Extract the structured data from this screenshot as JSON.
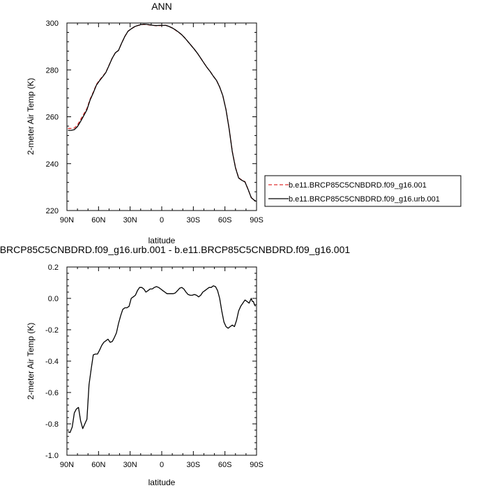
{
  "chart_data": [
    {
      "type": "line",
      "title": "ANN",
      "xlabel": "latitude",
      "ylabel": "2-meter Air Temp (K)",
      "xlim": [
        90,
        -90
      ],
      "ylim": [
        220,
        300
      ],
      "x_tick_values": [
        90,
        60,
        30,
        0,
        -30,
        -60,
        -90
      ],
      "x_tick_labels": [
        "90N",
        "60N",
        "30N",
        "0",
        "30S",
        "60S",
        "90S"
      ],
      "y_tick_values": [
        220,
        240,
        260,
        280,
        300
      ],
      "y_tick_labels": [
        "220",
        "240",
        "260",
        "280",
        "300"
      ],
      "grid": false,
      "legend_position": "right",
      "series": [
        {
          "name": "b.e11.BRCP85C5CNBDRD.f09_g16.001",
          "color": "#e03030",
          "dash": "dashed",
          "x": [
            89,
            86,
            83,
            80,
            77,
            74,
            71,
            68,
            65,
            62,
            59,
            56,
            53,
            50,
            47,
            44,
            41,
            38,
            35,
            32,
            29,
            26,
            23,
            20,
            17,
            14,
            11,
            8,
            5,
            2,
            -1,
            -4,
            -7,
            -10,
            -13,
            -16,
            -19,
            -22,
            -25,
            -28,
            -31,
            -34,
            -37,
            -40,
            -43,
            -46,
            -49,
            -52,
            -55,
            -58,
            -61,
            -64,
            -67,
            -70,
            -73,
            -76,
            -79,
            -82,
            -85,
            -88,
            -89
          ],
          "y": [
            255,
            255,
            255.2,
            256.5,
            258.8,
            261.2,
            263.5,
            267.5,
            270.5,
            273.8,
            275.7,
            277.3,
            279,
            282,
            285,
            287.3,
            288.3,
            291.5,
            294.3,
            296.5,
            297.5,
            298.3,
            298.9,
            299.2,
            299.4,
            299.3,
            299.1,
            299,
            298.8,
            298.9,
            299,
            299,
            298.5,
            297.9,
            297,
            296,
            295,
            293.6,
            292,
            290.4,
            288.8,
            287,
            285,
            283,
            281,
            279.3,
            277.3,
            275.5,
            272.7,
            269,
            263,
            255,
            245.3,
            238.4,
            234,
            233,
            232.3,
            229,
            225.5,
            224.3,
            224.3
          ]
        },
        {
          "name": "b.e11.BRCP85C5CNBDRD.f09_g16.urb.001",
          "color": "#000000",
          "dash": "solid",
          "x": [
            89,
            86,
            83,
            80,
            77,
            74,
            71,
            68,
            65,
            62,
            59,
            56,
            53,
            50,
            47,
            44,
            41,
            38,
            35,
            32,
            29,
            26,
            23,
            20,
            17,
            14,
            11,
            8,
            5,
            2,
            -1,
            -4,
            -7,
            -10,
            -13,
            -16,
            -19,
            -22,
            -25,
            -28,
            -31,
            -34,
            -37,
            -40,
            -43,
            -46,
            -49,
            -52,
            -55,
            -58,
            -61,
            -64,
            -67,
            -70,
            -73,
            -76,
            -79,
            -82,
            -85,
            -88,
            -89
          ],
          "y": [
            254.2,
            254.2,
            254.5,
            255.8,
            258,
            260.5,
            263,
            267.1,
            270.2,
            273.5,
            275.4,
            277.1,
            278.9,
            281.9,
            285,
            287.3,
            288.3,
            291.5,
            294.3,
            296.5,
            297.5,
            298.4,
            298.9,
            299.3,
            299.5,
            299.4,
            299.2,
            299,
            298.9,
            299,
            299,
            299,
            298.5,
            297.9,
            297.1,
            296.1,
            295,
            293.6,
            292,
            290.4,
            288.8,
            287,
            285,
            283,
            281,
            279.3,
            277.3,
            275.5,
            272.7,
            269,
            263,
            254.8,
            245.1,
            238.2,
            233.9,
            232.9,
            232.2,
            229,
            225.5,
            224.3,
            224.3
          ]
        }
      ]
    },
    {
      "type": "line",
      "title": "b.e11.BRCP85C5CNBDRD.f09_g16.urb.001 - b.e11.BRCP85C5CNBDRD.f09_g16.001",
      "xlabel": "latitude",
      "ylabel": "2-meter Air Temp (K)",
      "xlim": [
        90,
        -90
      ],
      "ylim": [
        -1.0,
        0.2
      ],
      "x_tick_values": [
        90,
        60,
        30,
        0,
        -30,
        -60,
        -90
      ],
      "x_tick_labels": [
        "90N",
        "60N",
        "30N",
        "0",
        "30S",
        "60S",
        "90S"
      ],
      "y_tick_values": [
        -1.0,
        -0.8,
        -0.6,
        -0.4,
        -0.2,
        0.0,
        0.2
      ],
      "y_tick_labels": [
        "-1.0",
        "-0.8",
        "-0.6",
        "-0.4",
        "-0.2",
        "0.0",
        "0.2"
      ],
      "grid": false,
      "series": [
        {
          "color": "#000000",
          "dash": "solid",
          "x": [
            89,
            87,
            85,
            83,
            81,
            79,
            77,
            75,
            73,
            71,
            69,
            67,
            65,
            63,
            61,
            59,
            57,
            55,
            53,
            51,
            49,
            47,
            45,
            43,
            41,
            39,
            37,
            35,
            33,
            31,
            29,
            27,
            25,
            23,
            21,
            19,
            17,
            15,
            13,
            11,
            9,
            7,
            5,
            3,
            1,
            -1,
            -3,
            -5,
            -7,
            -9,
            -11,
            -13,
            -15,
            -17,
            -19,
            -21,
            -23,
            -25,
            -27,
            -29,
            -31,
            -33,
            -35,
            -37,
            -39,
            -41,
            -43,
            -45,
            -47,
            -49,
            -51,
            -53,
            -55,
            -57,
            -59,
            -61,
            -63,
            -65,
            -67,
            -69,
            -71,
            -73,
            -75,
            -77,
            -79,
            -81,
            -83,
            -85,
            -86,
            -87,
            -88,
            -89
          ],
          "y": [
            -0.85,
            -0.855,
            -0.82,
            -0.73,
            -0.705,
            -0.695,
            -0.78,
            -0.83,
            -0.8,
            -0.77,
            -0.55,
            -0.45,
            -0.36,
            -0.355,
            -0.355,
            -0.33,
            -0.3,
            -0.28,
            -0.27,
            -0.26,
            -0.28,
            -0.275,
            -0.25,
            -0.22,
            -0.16,
            -0.11,
            -0.07,
            -0.06,
            -0.06,
            -0.05,
            0.0,
            0.01,
            0.02,
            0.05,
            0.07,
            0.07,
            0.06,
            0.04,
            0.05,
            0.06,
            0.06,
            0.07,
            0.075,
            0.07,
            0.06,
            0.05,
            0.04,
            0.03,
            0.03,
            0.03,
            0.03,
            0.035,
            0.05,
            0.065,
            0.07,
            0.06,
            0.04,
            0.025,
            0.02,
            0.02,
            0.025,
            0.02,
            0.01,
            0.02,
            0.04,
            0.05,
            0.06,
            0.07,
            0.07,
            0.08,
            0.075,
            0.05,
            0.0,
            -0.08,
            -0.15,
            -0.18,
            -0.19,
            -0.18,
            -0.17,
            -0.18,
            -0.14,
            -0.08,
            -0.05,
            -0.03,
            -0.01,
            -0.02,
            -0.03,
            0.0,
            -0.02,
            -0.02,
            -0.04,
            -0.05
          ]
        }
      ]
    }
  ]
}
